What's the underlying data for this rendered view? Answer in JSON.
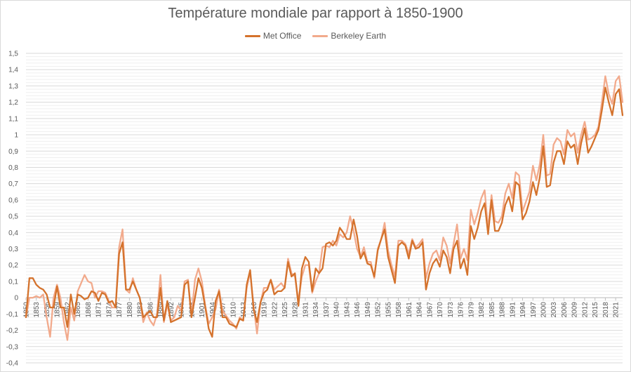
{
  "chart_data": {
    "type": "line",
    "title": "Température mondiale par rapport à 1850-1900",
    "xlabel": "",
    "ylabel": "",
    "ylim": [
      -0.4,
      1.5
    ],
    "y_ticks": [
      "-0,4",
      "-0,3",
      "-0,2",
      "-0,1",
      "0",
      "0,1",
      "0,2",
      "0,3",
      "0,4",
      "0,5",
      "0,6",
      "0,7",
      "0,8",
      "0,9",
      "1",
      "1,1",
      "1,2",
      "1,3",
      "1,4",
      "1,5"
    ],
    "x_tick_labels": [
      "1850",
      "1853",
      "1856",
      "1859",
      "1862",
      "1865",
      "1868",
      "1871",
      "1874",
      "1877",
      "1880",
      "1883",
      "1886",
      "1889",
      "1892",
      "1895",
      "1898",
      "1901",
      "1904",
      "1907",
      "1910",
      "1913",
      "1916",
      "1919",
      "1922",
      "1925",
      "1928",
      "1931",
      "1934",
      "1937",
      "1940",
      "1943",
      "1946",
      "1949",
      "1952",
      "1955",
      "1958",
      "1961",
      "1964",
      "1967",
      "1970",
      "1973",
      "1976",
      "1979",
      "1982",
      "1985",
      "1988",
      "1991",
      "1994",
      "1997",
      "2000",
      "2003",
      "2006",
      "2009",
      "2012",
      "2015",
      "2018",
      "2021"
    ],
    "grid": true,
    "legend_position": "top-center",
    "x_start": 1850,
    "series": [
      {
        "name": "Met Office",
        "color": "#d4722c",
        "values": [
          -0.12,
          0.12,
          0.12,
          0.08,
          0.06,
          0.05,
          0.02,
          -0.06,
          -0.06,
          0.07,
          -0.06,
          -0.06,
          -0.18,
          0.02,
          -0.1,
          0.02,
          0.01,
          -0.01,
          0.0,
          0.04,
          0.03,
          -0.02,
          0.03,
          0.02,
          -0.03,
          -0.02,
          -0.06,
          0.27,
          0.34,
          0.05,
          0.05,
          0.1,
          0.05,
          0.0,
          -0.12,
          -0.1,
          -0.08,
          -0.12,
          -0.12,
          0.06,
          -0.14,
          -0.02,
          -0.15,
          -0.14,
          -0.13,
          -0.12,
          0.08,
          0.1,
          -0.12,
          0.0,
          0.12,
          0.06,
          -0.06,
          -0.19,
          -0.24,
          -0.02,
          0.04,
          -0.12,
          -0.12,
          -0.16,
          -0.17,
          -0.18,
          -0.13,
          -0.14,
          0.08,
          0.17,
          -0.07,
          -0.15,
          -0.03,
          0.03,
          0.05,
          0.11,
          0.02,
          0.04,
          0.04,
          0.06,
          0.22,
          0.13,
          0.15,
          -0.05,
          0.18,
          0.25,
          0.22,
          0.04,
          0.18,
          0.15,
          0.18,
          0.33,
          0.34,
          0.32,
          0.35,
          0.43,
          0.4,
          0.36,
          0.36,
          0.48,
          0.38,
          0.24,
          0.28,
          0.21,
          0.2,
          0.13,
          0.29,
          0.36,
          0.42,
          0.25,
          0.17,
          0.09,
          0.32,
          0.34,
          0.32,
          0.24,
          0.35,
          0.3,
          0.31,
          0.34,
          0.05,
          0.15,
          0.21,
          0.24,
          0.19,
          0.29,
          0.25,
          0.15,
          0.3,
          0.35,
          0.18,
          0.24,
          0.14,
          0.44,
          0.36,
          0.43,
          0.53,
          0.58,
          0.39,
          0.6,
          0.41,
          0.41,
          0.46,
          0.57,
          0.62,
          0.53,
          0.71,
          0.69,
          0.48,
          0.52,
          0.59,
          0.71,
          0.63,
          0.74,
          0.93,
          0.68,
          0.69,
          0.83,
          0.9,
          0.9,
          0.82,
          0.96,
          0.92,
          0.94,
          0.82,
          0.95,
          1.04,
          0.89,
          0.93,
          0.98,
          1.03,
          1.15,
          1.29,
          1.2,
          1.12,
          1.25,
          1.28,
          1.12
        ]
      },
      {
        "name": "Berkeley Earth",
        "color": "#f2aa8c",
        "values": [
          -0.12,
          0.0,
          0.0,
          0.01,
          0.0,
          0.02,
          -0.12,
          -0.24,
          0.0,
          0.08,
          0.0,
          -0.15,
          -0.26,
          -0.06,
          -0.14,
          0.04,
          0.09,
          0.14,
          0.1,
          0.09,
          -0.0,
          0.04,
          0.04,
          0.03,
          -0.02,
          -0.06,
          -0.06,
          0.31,
          0.42,
          0.05,
          0.03,
          0.12,
          0.05,
          0.0,
          -0.15,
          -0.09,
          -0.14,
          -0.17,
          -0.1,
          0.14,
          -0.15,
          -0.04,
          -0.14,
          -0.12,
          -0.05,
          -0.08,
          0.1,
          0.11,
          -0.11,
          0.11,
          0.18,
          0.1,
          -0.05,
          -0.16,
          -0.12,
          -0.07,
          0.05,
          -0.08,
          -0.11,
          -0.14,
          -0.16,
          -0.19,
          -0.12,
          -0.14,
          0.06,
          0.16,
          -0.05,
          -0.22,
          -0.03,
          0.06,
          0.06,
          0.11,
          0.05,
          0.07,
          0.09,
          0.06,
          0.24,
          0.15,
          0.13,
          -0.02,
          0.13,
          0.2,
          0.2,
          0.03,
          0.1,
          0.15,
          0.31,
          0.32,
          0.31,
          0.35,
          0.32,
          0.39,
          0.37,
          0.4,
          0.5,
          0.41,
          0.3,
          0.25,
          0.31,
          0.22,
          0.22,
          0.12,
          0.3,
          0.36,
          0.46,
          0.29,
          0.2,
          0.13,
          0.35,
          0.35,
          0.33,
          0.27,
          0.36,
          0.31,
          0.33,
          0.36,
          0.12,
          0.21,
          0.27,
          0.29,
          0.23,
          0.37,
          0.32,
          0.21,
          0.33,
          0.45,
          0.24,
          0.3,
          0.23,
          0.54,
          0.45,
          0.52,
          0.61,
          0.66,
          0.42,
          0.63,
          0.47,
          0.46,
          0.5,
          0.64,
          0.7,
          0.61,
          0.77,
          0.75,
          0.53,
          0.59,
          0.65,
          0.81,
          0.72,
          0.82,
          1.0,
          0.75,
          0.76,
          0.94,
          0.98,
          0.96,
          0.88,
          1.03,
          0.99,
          1.01,
          0.89,
          1.0,
          1.08,
          0.97,
          0.98,
          1.0,
          1.05,
          1.2,
          1.36,
          1.25,
          1.19,
          1.33,
          1.36,
          1.2
        ]
      }
    ]
  }
}
